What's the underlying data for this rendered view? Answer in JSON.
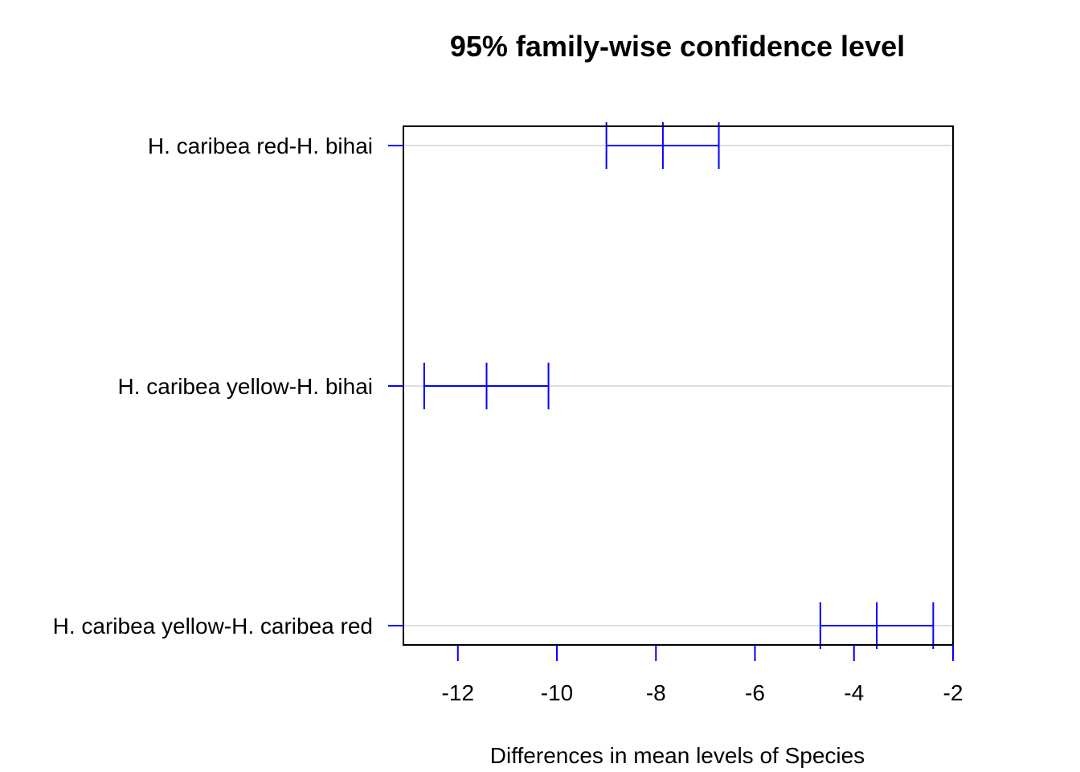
{
  "chart_data": {
    "type": "interval",
    "title": "95% family-wise confidence level",
    "xlabel": "Differences in mean levels of Species",
    "ylabel": "",
    "xlim": [
      -13.1,
      -2.0
    ],
    "x_ticks": [
      -12,
      -10,
      -8,
      -6,
      -4,
      -2
    ],
    "x_tick_labels": [
      "-12",
      "-10",
      "-8",
      "-6",
      "-4",
      "-2"
    ],
    "grid": "horizontal",
    "comparisons": [
      {
        "label": "H. caribea red-H. bihai",
        "estimate": -7.86,
        "lower": -9.0,
        "upper": -6.73
      },
      {
        "label": "H. caribea yellow-H. bihai",
        "estimate": -11.42,
        "lower": -12.68,
        "upper": -10.17
      },
      {
        "label": "H. caribea yellow-H. caribea red",
        "estimate": -3.54,
        "lower": -4.68,
        "upper": -2.4
      }
    ],
    "colors": {
      "interval": "#0000ff",
      "axis": "#000000",
      "grid": "#d3d3d3"
    }
  }
}
